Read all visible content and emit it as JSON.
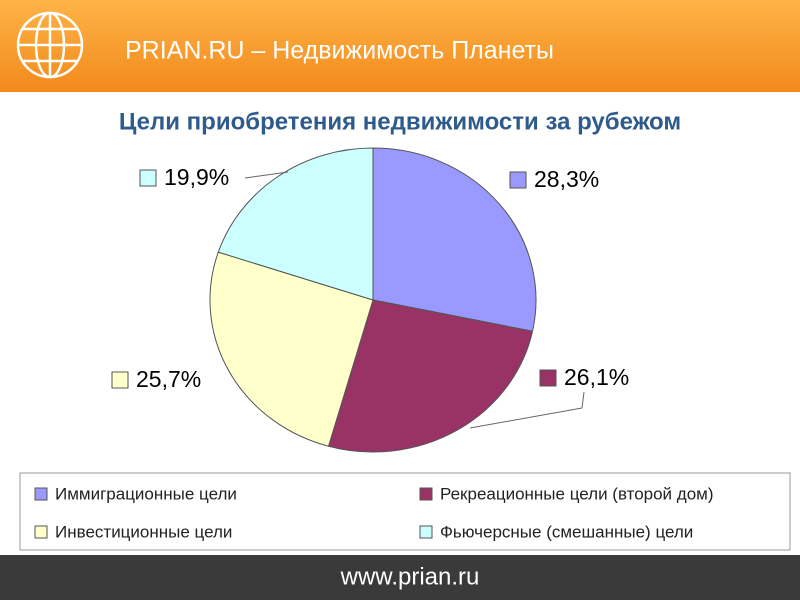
{
  "header": {
    "title": "PRIAN.RU – Недвижимость Планеты"
  },
  "chart_data": {
    "type": "pie",
    "title": "Цели приобретения недвижимости за рубежом",
    "categories": [
      "Иммиграционные цели",
      "Рекреационные цели (второй дом)",
      "Инвестиционные цели",
      "Фьючерсные (смешанные) цели"
    ],
    "values": [
      28.3,
      26.1,
      25.7,
      19.9
    ],
    "value_labels": [
      "28,3%",
      "26,1%",
      "25,7%",
      "19,9%"
    ],
    "colors": [
      "#9999ff",
      "#993366",
      "#ffffcc",
      "#ccffff"
    ],
    "legend": "bottom"
  },
  "footer": {
    "text": "www.prian.ru"
  }
}
